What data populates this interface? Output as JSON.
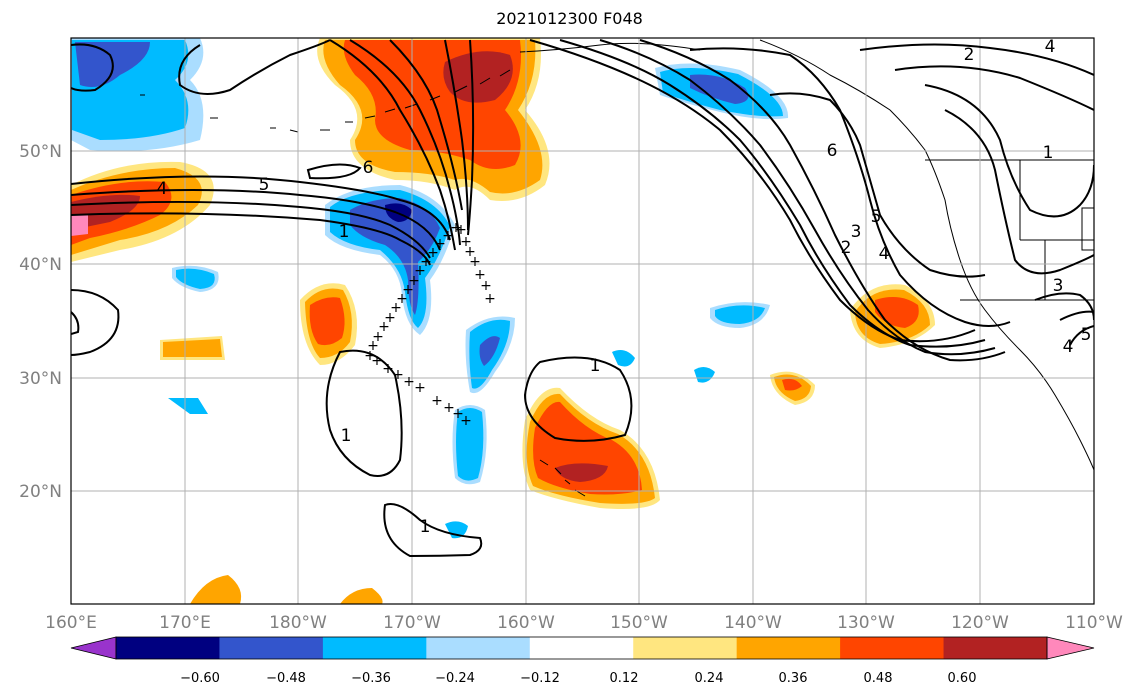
{
  "title": "2021012300 F048",
  "map": {
    "lon_labels": [
      "160°E",
      "170°E",
      "180°W",
      "170°W",
      "160°W",
      "150°W",
      "140°W",
      "130°W",
      "120°W",
      "110°W"
    ],
    "lat_labels": [
      "50°N",
      "40°N",
      "30°N",
      "20°N"
    ],
    "extent": {
      "lon_min": 160,
      "lon_max": 250,
      "lat_min": 10,
      "lat_max": 60
    },
    "gridlines": true,
    "contour_labels": [
      "4",
      "5",
      "6",
      "1",
      "1",
      "1",
      "1",
      "2",
      "4",
      "6",
      "5",
      "3",
      "2",
      "4",
      "1",
      "3",
      "4",
      "5"
    ],
    "track_marker": "+"
  },
  "colorbar": {
    "tick_labels": [
      "−0.60",
      "−0.48",
      "−0.36",
      "−0.24",
      "−0.12",
      "0.12",
      "0.24",
      "0.36",
      "0.48",
      "0.60"
    ],
    "colors": [
      "#9933cc",
      "#000080",
      "#3355cc",
      "#00bbff",
      "#aaddff",
      "#ffffff",
      "#ffe680",
      "#ffa500",
      "#ff4500",
      "#b22222",
      "#ff88bb"
    ]
  },
  "palette": {
    "pos1": "#ffe680",
    "pos2": "#ffa500",
    "pos3": "#ff4500",
    "pos4": "#b22222",
    "pos5": "#ff88bb",
    "neg1": "#aaddff",
    "neg2": "#00bbff",
    "neg3": "#3355cc",
    "neg4": "#000080"
  }
}
